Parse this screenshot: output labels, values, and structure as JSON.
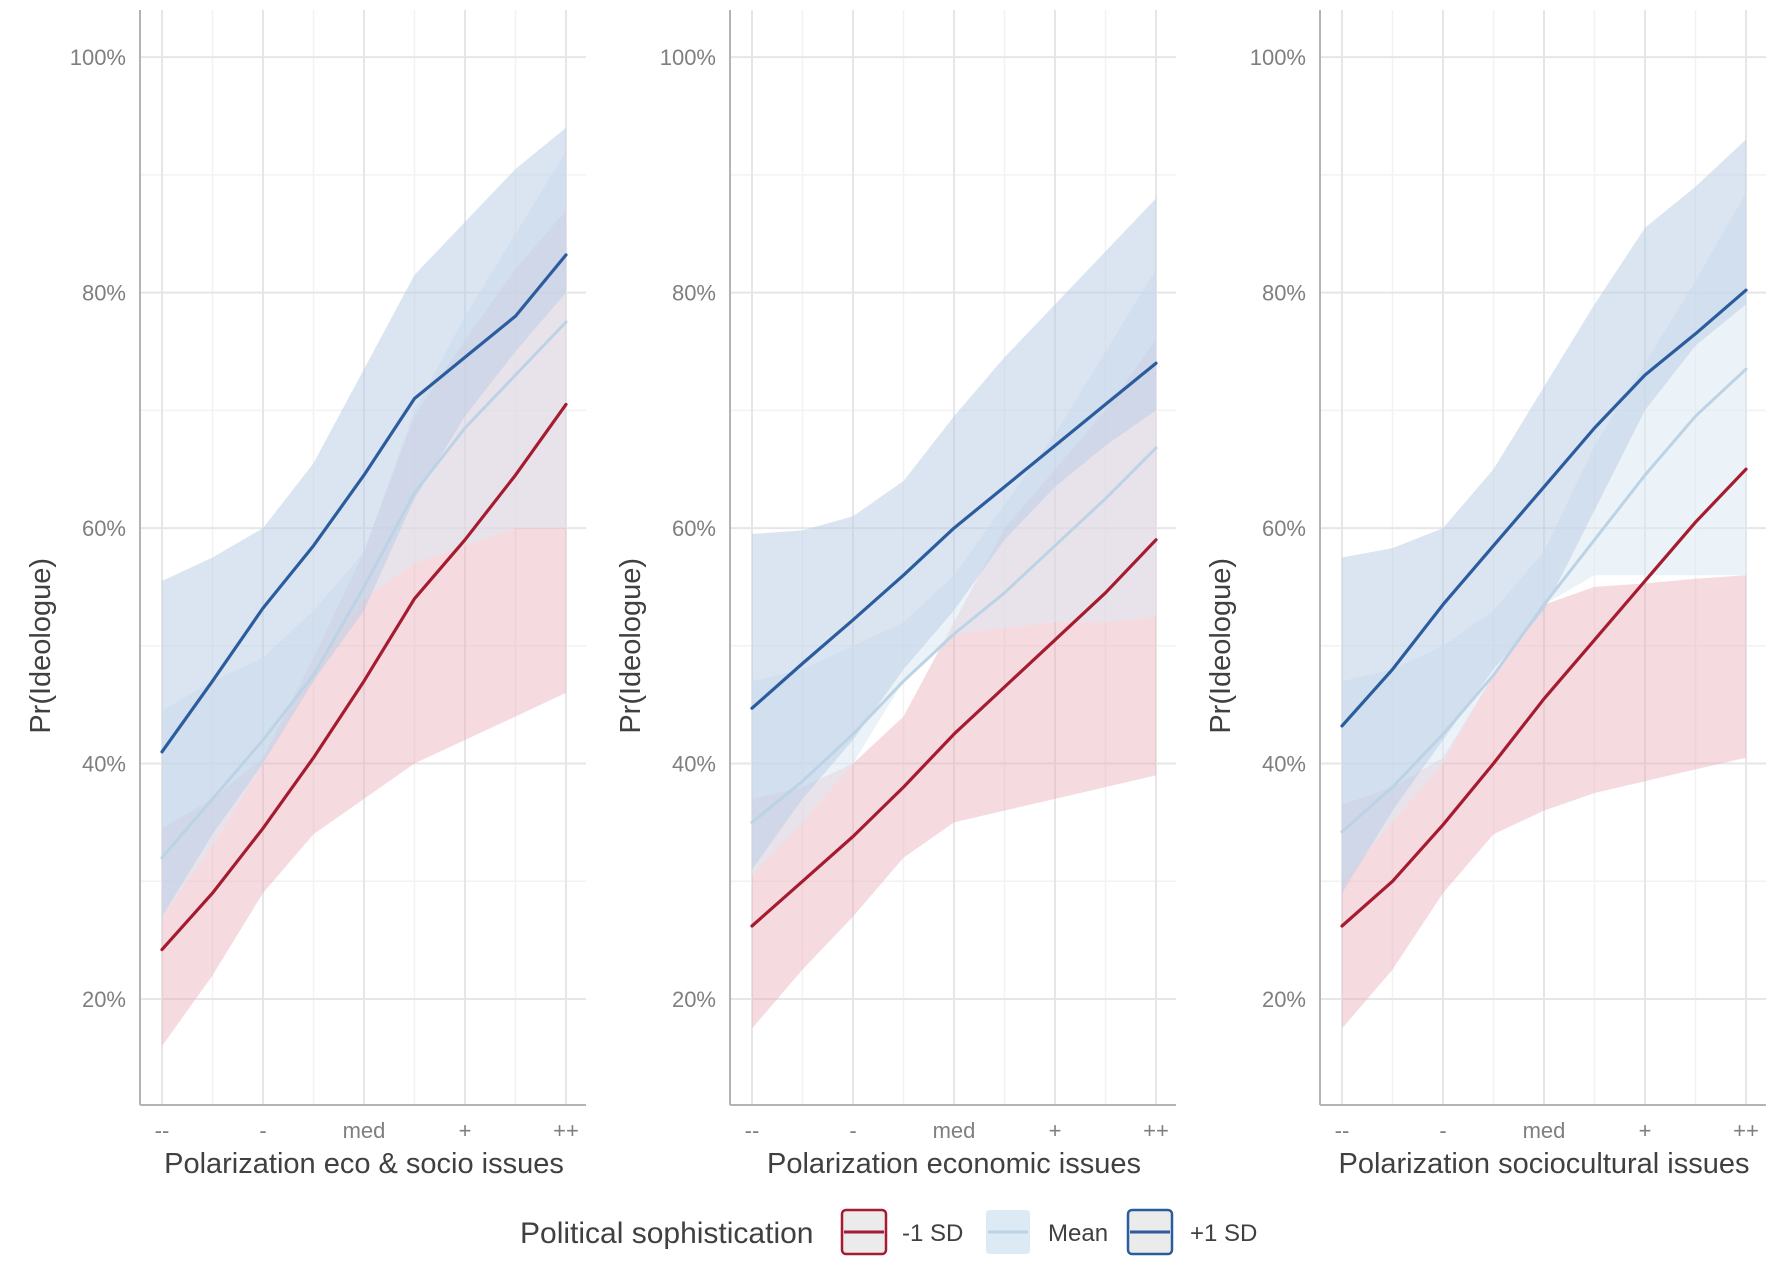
{
  "colors": {
    "minus1sd": "#a51c30",
    "mean": "#bcd3e6",
    "plus1sd": "#2b5d9e",
    "band_minus1sd": "#e8b0ba",
    "band_mean": "#dde9f3",
    "band_plus1sd": "#b7cce6",
    "major_grid": "#e6e6e6",
    "minor_grid": "#f2f2f2",
    "axis_line": "#b3b3b3"
  },
  "chart_data": [
    {
      "type": "line",
      "xlabel": "Polarization eco & socio issues",
      "ylabel": "Pr(Ideologue)",
      "categories": [
        "--",
        "-",
        "med",
        "+",
        "++"
      ],
      "ylim": [
        0.11,
        1.04
      ],
      "ytick_values": [
        0.2,
        0.4,
        0.6,
        0.8,
        1.0
      ],
      "ytick_labels": [
        "20%",
        "40%",
        "60%",
        "80%",
        "100%"
      ],
      "grid": true,
      "series": [
        {
          "name": "-1 SD",
          "x": [
            1,
            1.5,
            2,
            2.5,
            3,
            3.5,
            4,
            4.5,
            5
          ],
          "y": [
            0.242,
            0.29,
            0.345,
            0.405,
            0.47,
            0.54,
            0.59,
            0.645,
            0.705
          ],
          "lower": [
            0.16,
            0.22,
            0.29,
            0.34,
            0.37,
            0.4,
            0.42,
            0.44,
            0.46
          ],
          "upper": [
            0.345,
            0.37,
            0.405,
            0.49,
            0.58,
            0.695,
            0.76,
            0.82,
            0.87
          ]
        },
        {
          "name": "Mean",
          "x": [
            1,
            1.5,
            2,
            2.5,
            3,
            3.5,
            4,
            4.5,
            5
          ],
          "y": [
            0.32,
            0.37,
            0.42,
            0.475,
            0.55,
            0.63,
            0.685,
            0.73,
            0.775
          ],
          "lower": [
            0.27,
            0.33,
            0.4,
            0.48,
            0.54,
            0.57,
            0.585,
            0.6,
            0.6
          ],
          "upper": [
            0.445,
            0.47,
            0.49,
            0.53,
            0.58,
            0.7,
            0.78,
            0.85,
            0.92
          ]
        },
        {
          "name": "+1 SD",
          "x": [
            1,
            1.5,
            2,
            2.5,
            3,
            3.5,
            4,
            4.5,
            5
          ],
          "y": [
            0.41,
            0.47,
            0.532,
            0.585,
            0.645,
            0.71,
            0.745,
            0.78,
            0.832
          ],
          "lower": [
            0.27,
            0.34,
            0.4,
            0.47,
            0.53,
            0.625,
            0.695,
            0.75,
            0.8
          ],
          "upper": [
            0.555,
            0.575,
            0.6,
            0.655,
            0.735,
            0.815,
            0.86,
            0.905,
            0.94
          ]
        }
      ]
    },
    {
      "type": "line",
      "xlabel": "Polarization economic issues",
      "ylabel": "Pr(Ideologue)",
      "categories": [
        "--",
        "-",
        "med",
        "+",
        "++"
      ],
      "ylim": [
        0.11,
        1.04
      ],
      "ytick_values": [
        0.2,
        0.4,
        0.6,
        0.8,
        1.0
      ],
      "ytick_labels": [
        "20%",
        "40%",
        "60%",
        "80%",
        "100%"
      ],
      "grid": true,
      "series": [
        {
          "name": "-1 SD",
          "x": [
            1,
            1.5,
            2,
            2.5,
            3,
            3.5,
            4,
            4.5,
            5
          ],
          "y": [
            0.262,
            0.3,
            0.338,
            0.38,
            0.425,
            0.465,
            0.505,
            0.545,
            0.59
          ],
          "lower": [
            0.175,
            0.225,
            0.27,
            0.32,
            0.35,
            0.36,
            0.37,
            0.38,
            0.39
          ],
          "upper": [
            0.37,
            0.38,
            0.4,
            0.44,
            0.52,
            0.6,
            0.65,
            0.7,
            0.76
          ]
        },
        {
          "name": "Mean",
          "x": [
            1,
            1.5,
            2,
            2.5,
            3,
            3.5,
            4,
            4.5,
            5
          ],
          "y": [
            0.35,
            0.385,
            0.425,
            0.47,
            0.51,
            0.545,
            0.585,
            0.625,
            0.668
          ],
          "lower": [
            0.305,
            0.35,
            0.4,
            0.47,
            0.51,
            0.515,
            0.52,
            0.52,
            0.525
          ],
          "upper": [
            0.47,
            0.48,
            0.5,
            0.52,
            0.56,
            0.62,
            0.68,
            0.75,
            0.82
          ]
        },
        {
          "name": "+1 SD",
          "x": [
            1,
            1.5,
            2,
            2.5,
            3,
            3.5,
            4,
            4.5,
            5
          ],
          "y": [
            0.447,
            0.485,
            0.522,
            0.56,
            0.6,
            0.635,
            0.67,
            0.705,
            0.74
          ],
          "lower": [
            0.31,
            0.37,
            0.42,
            0.48,
            0.53,
            0.59,
            0.635,
            0.67,
            0.7
          ],
          "upper": [
            0.595,
            0.598,
            0.61,
            0.64,
            0.695,
            0.745,
            0.79,
            0.835,
            0.88
          ]
        }
      ]
    },
    {
      "type": "line",
      "xlabel": "Polarization sociocultural issues",
      "ylabel": "Pr(Ideologue)",
      "categories": [
        "--",
        "-",
        "med",
        "+",
        "++"
      ],
      "ylim": [
        0.11,
        1.04
      ],
      "ytick_values": [
        0.2,
        0.4,
        0.6,
        0.8,
        1.0
      ],
      "ytick_labels": [
        "20%",
        "40%",
        "60%",
        "80%",
        "100%"
      ],
      "grid": true,
      "series": [
        {
          "name": "-1 SD",
          "x": [
            1,
            1.5,
            2,
            2.5,
            3,
            3.5,
            4,
            4.5,
            5
          ],
          "y": [
            0.262,
            0.3,
            0.348,
            0.4,
            0.455,
            0.505,
            0.555,
            0.605,
            0.65
          ],
          "lower": [
            0.175,
            0.225,
            0.29,
            0.34,
            0.36,
            0.375,
            0.385,
            0.395,
            0.405
          ],
          "upper": [
            0.365,
            0.38,
            0.405,
            0.475,
            0.535,
            0.55,
            0.553,
            0.557,
            0.56
          ]
        },
        {
          "name": "Mean",
          "x": [
            1,
            1.5,
            2,
            2.5,
            3,
            3.5,
            4,
            4.5,
            5
          ],
          "y": [
            0.342,
            0.38,
            0.425,
            0.475,
            0.535,
            0.59,
            0.645,
            0.695,
            0.735
          ],
          "lower": [
            0.3,
            0.35,
            0.4,
            0.475,
            0.535,
            0.56,
            0.56,
            0.56,
            0.56
          ],
          "upper": [
            0.47,
            0.48,
            0.5,
            0.53,
            0.58,
            0.67,
            0.74,
            0.81,
            0.885
          ]
        },
        {
          "name": "+1 SD",
          "x": [
            1,
            1.5,
            2,
            2.5,
            3,
            3.5,
            4,
            4.5,
            5
          ],
          "y": [
            0.432,
            0.48,
            0.535,
            0.585,
            0.635,
            0.685,
            0.73,
            0.765,
            0.802
          ],
          "lower": [
            0.29,
            0.36,
            0.42,
            0.48,
            0.53,
            0.615,
            0.7,
            0.755,
            0.79
          ],
          "upper": [
            0.575,
            0.583,
            0.6,
            0.65,
            0.72,
            0.79,
            0.855,
            0.89,
            0.93
          ]
        }
      ]
    }
  ],
  "legend": {
    "title": "Political sophistication",
    "items": [
      {
        "label": "-1 SD"
      },
      {
        "label": "Mean"
      },
      {
        "label": "+1 SD"
      }
    ]
  }
}
